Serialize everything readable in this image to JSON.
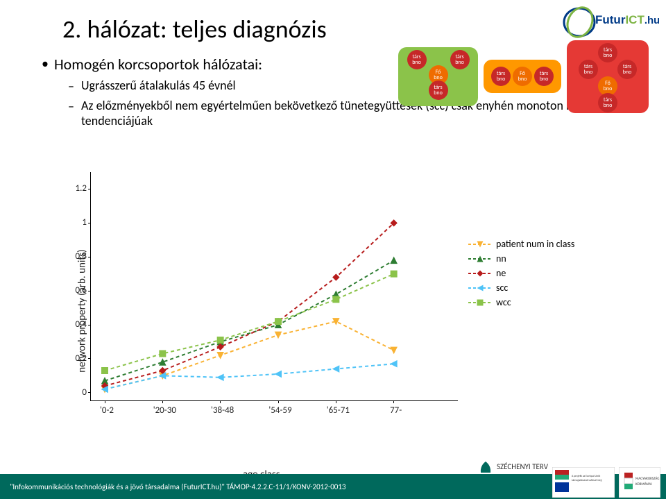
{
  "title": "2. hálózat: teljes diagnózis",
  "bullets": {
    "lvl0": "Homogén korcsoportok hálózatai:",
    "lvl1a": "Ugrásszerű átalakulás 45 évnél",
    "lvl1b": "Az előzményekből nem egyértelműen bekövetkező tünetegyüttesek (scc) csak enyhén monoton növő tendenciájúak"
  },
  "diagram": {
    "labels": {
      "tars": "társ",
      "bno": "bno",
      "fo": "Fő"
    },
    "clusters": [
      {
        "bg": "#8bc34a",
        "fo_color": "#ef6c00",
        "tars_color": "#c62828"
      },
      {
        "bg": "#ff9800",
        "fo_color": "#ef6c00",
        "tars_color": "#c62828"
      },
      {
        "bg": "#e53935",
        "fo_color": "#ef6c00",
        "tars_color": "#c62828"
      }
    ]
  },
  "chart": {
    "type": "line",
    "ylabel": "network property (arb. units)",
    "xlabel": "age class",
    "xlim": [
      0,
      6
    ],
    "ylim": [
      -0.05,
      1.3
    ],
    "yticks": [
      0,
      0.2,
      0.4,
      0.6,
      0.8,
      1,
      1.2
    ],
    "xticks_idx": [
      0,
      1,
      2,
      3,
      4,
      5
    ],
    "xtick_labels": [
      "'0-2",
      "'20-30",
      "'38-48",
      "'54-59",
      "'65-71",
      "77-"
    ],
    "background_color": "#ffffff",
    "axis_color": "#000000",
    "label_fontsize": 15,
    "tick_fontsize": 13,
    "marker_size": 9,
    "line_width": 2,
    "line_style_dashed": true,
    "series": [
      {
        "key": "patient_num",
        "label": "patient num in class",
        "color": "#f9b233",
        "marker": "tri-down",
        "y": [
          0.02,
          0.1,
          0.22,
          0.34,
          0.42,
          0.25
        ]
      },
      {
        "key": "nn",
        "label": "nn",
        "color": "#2e7d32",
        "marker": "tri-up",
        "y": [
          0.07,
          0.18,
          0.3,
          0.4,
          0.58,
          0.78
        ]
      },
      {
        "key": "ne",
        "label": "ne",
        "color": "#b71c1c",
        "marker": "diamond",
        "y": [
          0.04,
          0.13,
          0.27,
          0.42,
          0.68,
          1.0
        ]
      },
      {
        "key": "scc",
        "label": "scc",
        "color": "#4fc3f7",
        "marker": "tri-left",
        "y": [
          0.02,
          0.1,
          0.09,
          0.11,
          0.14,
          0.17
        ]
      },
      {
        "key": "wcc",
        "label": "wcc",
        "color": "#8bc34a",
        "marker": "square",
        "y": [
          0.13,
          0.23,
          0.31,
          0.42,
          0.55,
          0.7
        ]
      }
    ]
  },
  "footer": {
    "text": "\"Infokommunikációs technológiák és a jövő társadalma (FuturICT.hu)\" TÁMOP-4.2.2.C-11/1/KONV-2012-0013",
    "szechenyi": "SZÉCHENYI TERV",
    "logo_text": "FuturICT.hu"
  }
}
